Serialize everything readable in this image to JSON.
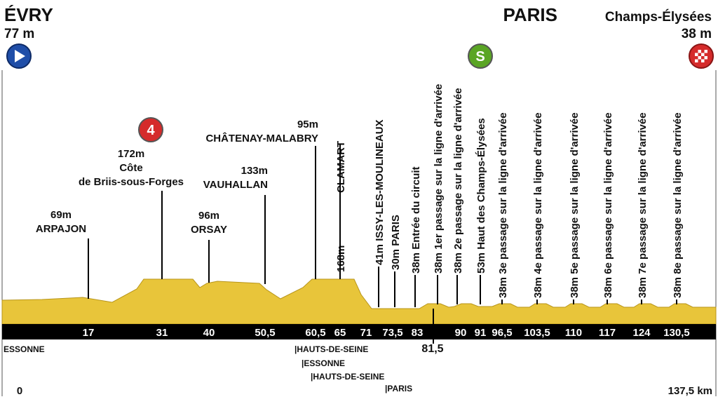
{
  "header": {
    "start": {
      "name": "ÉVRY",
      "altitude": "77 m"
    },
    "finish": {
      "name": "PARIS",
      "subtitle": "Champs-Élysées",
      "altitude": "38 m"
    }
  },
  "upright_points": [
    {
      "lines": [
        "69m",
        "ARPAJON"
      ]
    },
    {
      "badge": "4",
      "lines": [
        "172m",
        "Côte",
        "de Briis-sous-Forges"
      ]
    },
    {
      "lines": [
        "96m",
        "ORSAY"
      ]
    },
    {
      "lines": [
        "133m",
        "VAUHALLAN"
      ]
    },
    {
      "lines": [
        "95m",
        "CHÂTENAY-MALABRY"
      ]
    }
  ],
  "vertical_points": [
    {
      "altitude": "168m",
      "label": "CLAMART"
    },
    {
      "label": "41m ISSY-LES-MOULINEAUX"
    },
    {
      "label": "30m PARIS"
    },
    {
      "label": "38m Entrée du circuit"
    },
    {
      "label": "38m 1er passage sur la ligne d'arrivée"
    },
    {
      "label": "38m 2e passage sur la ligne d'arrivée"
    },
    {
      "badge": "S",
      "label": "53m Haut des Champs-Élysées"
    },
    {
      "label": "38m 3e passage sur la ligne d'arrivée"
    },
    {
      "label": "38m 4e passage sur la ligne d'arrivée"
    },
    {
      "label": "38m 5e passage sur la ligne d'arrivée"
    },
    {
      "label": "38m 6e passage sur la ligne d'arrivée"
    },
    {
      "label": "38m 7e passage sur la ligne d'arrivée"
    },
    {
      "label": "38m 8e passage sur la ligne d'arrivée"
    }
  ],
  "km_markers": [
    "17",
    "31",
    "40",
    "50,5",
    "60,5",
    "65",
    "71",
    "73,5",
    "83",
    "90",
    "91",
    "96,5",
    "103,5",
    "110",
    "117",
    "124",
    "130,5"
  ],
  "finish_line_km": "81,5",
  "distance": {
    "start": "0",
    "end": "137,5 km"
  },
  "regions": [
    "ESSONNE",
    "|HAUTS-DE-SEINE",
    "|ESSONNE",
    "|HAUTS-DE-SEINE",
    "|PARIS"
  ]
}
